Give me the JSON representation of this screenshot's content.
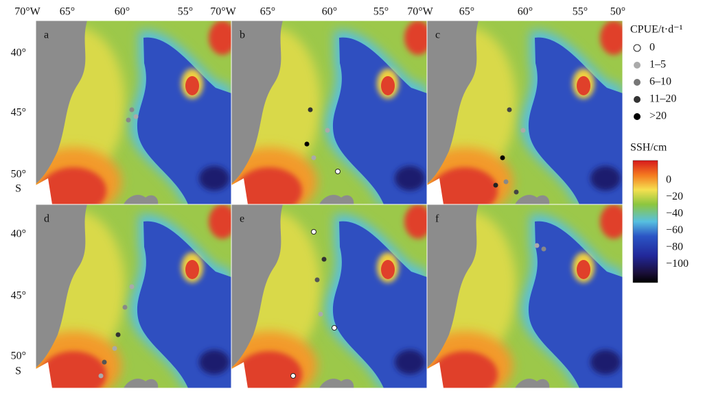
{
  "top_axis": [
    [
      "70°W",
      "65°",
      "60°",
      "55°"
    ],
    [
      "70°W",
      "65°",
      "60°",
      "55°"
    ],
    [
      "70°W",
      "65°",
      "60°",
      "55°",
      "50°"
    ]
  ],
  "left_axis": [
    [
      "40°",
      "45°",
      "50°",
      "S"
    ],
    [
      "40°",
      "45°",
      "50°",
      "S"
    ]
  ],
  "panels": [
    "a",
    "b",
    "c",
    "d",
    "e",
    "f"
  ],
  "cpue_legend": {
    "title": "CPUE/t·d⁻¹",
    "items": [
      "0",
      "1–5",
      "6–10",
      "11–20",
      ">20"
    ]
  },
  "ssh_legend": {
    "title": "SSH/cm",
    "ticks": [
      "0",
      "−20",
      "−40",
      "−60",
      "−80",
      "−100"
    ]
  }
}
